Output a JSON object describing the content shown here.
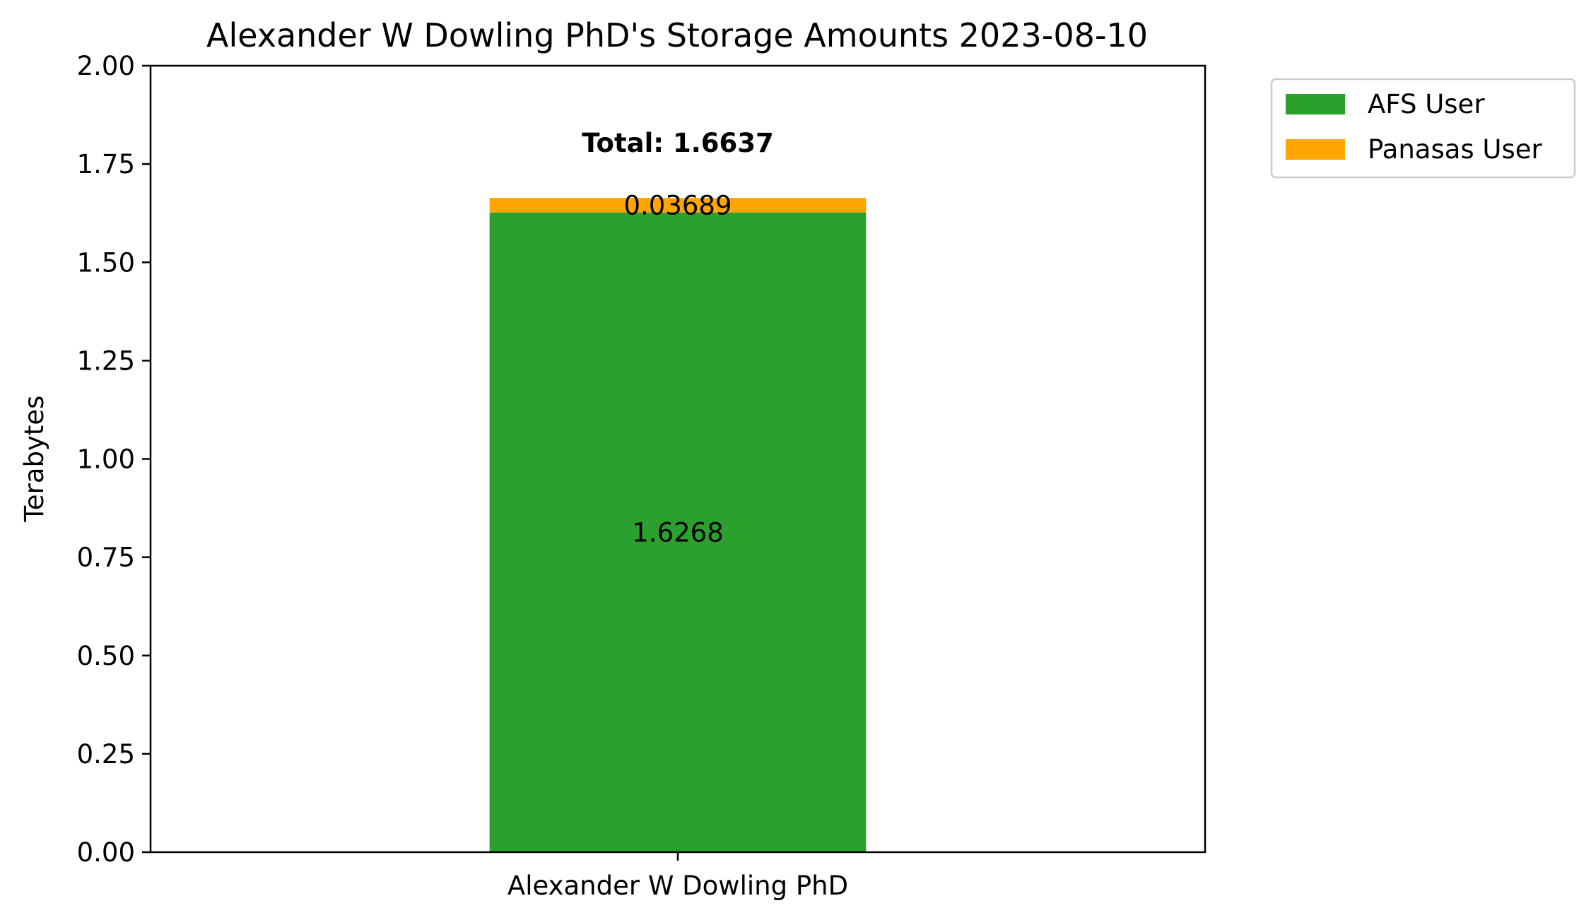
{
  "chart_data": {
    "type": "bar",
    "stacked": true,
    "title": "Alexander W Dowling PhD's Storage Amounts 2023-08-10",
    "xlabel": "",
    "ylabel": "Terabytes",
    "categories": [
      "Alexander W Dowling PhD"
    ],
    "series": [
      {
        "name": "AFS User",
        "color": "#2ca02c",
        "values": [
          1.6268
        ],
        "labels": [
          "1.6268"
        ]
      },
      {
        "name": "Panasas User",
        "color": "#ffa500",
        "values": [
          0.03689
        ],
        "labels": [
          "0.03689"
        ]
      }
    ],
    "totals": [
      "Total: 1.6637"
    ],
    "total_values": [
      1.6637
    ],
    "ylim": [
      0,
      2.0
    ],
    "yticks": [
      0.0,
      0.25,
      0.5,
      0.75,
      1.0,
      1.25,
      1.5,
      1.75,
      2.0
    ],
    "ytick_labels": [
      "0.00",
      "0.25",
      "0.50",
      "0.75",
      "1.00",
      "1.25",
      "1.50",
      "1.75",
      "2.00"
    ],
    "grid": false,
    "legend_position": "outside-top-right"
  }
}
